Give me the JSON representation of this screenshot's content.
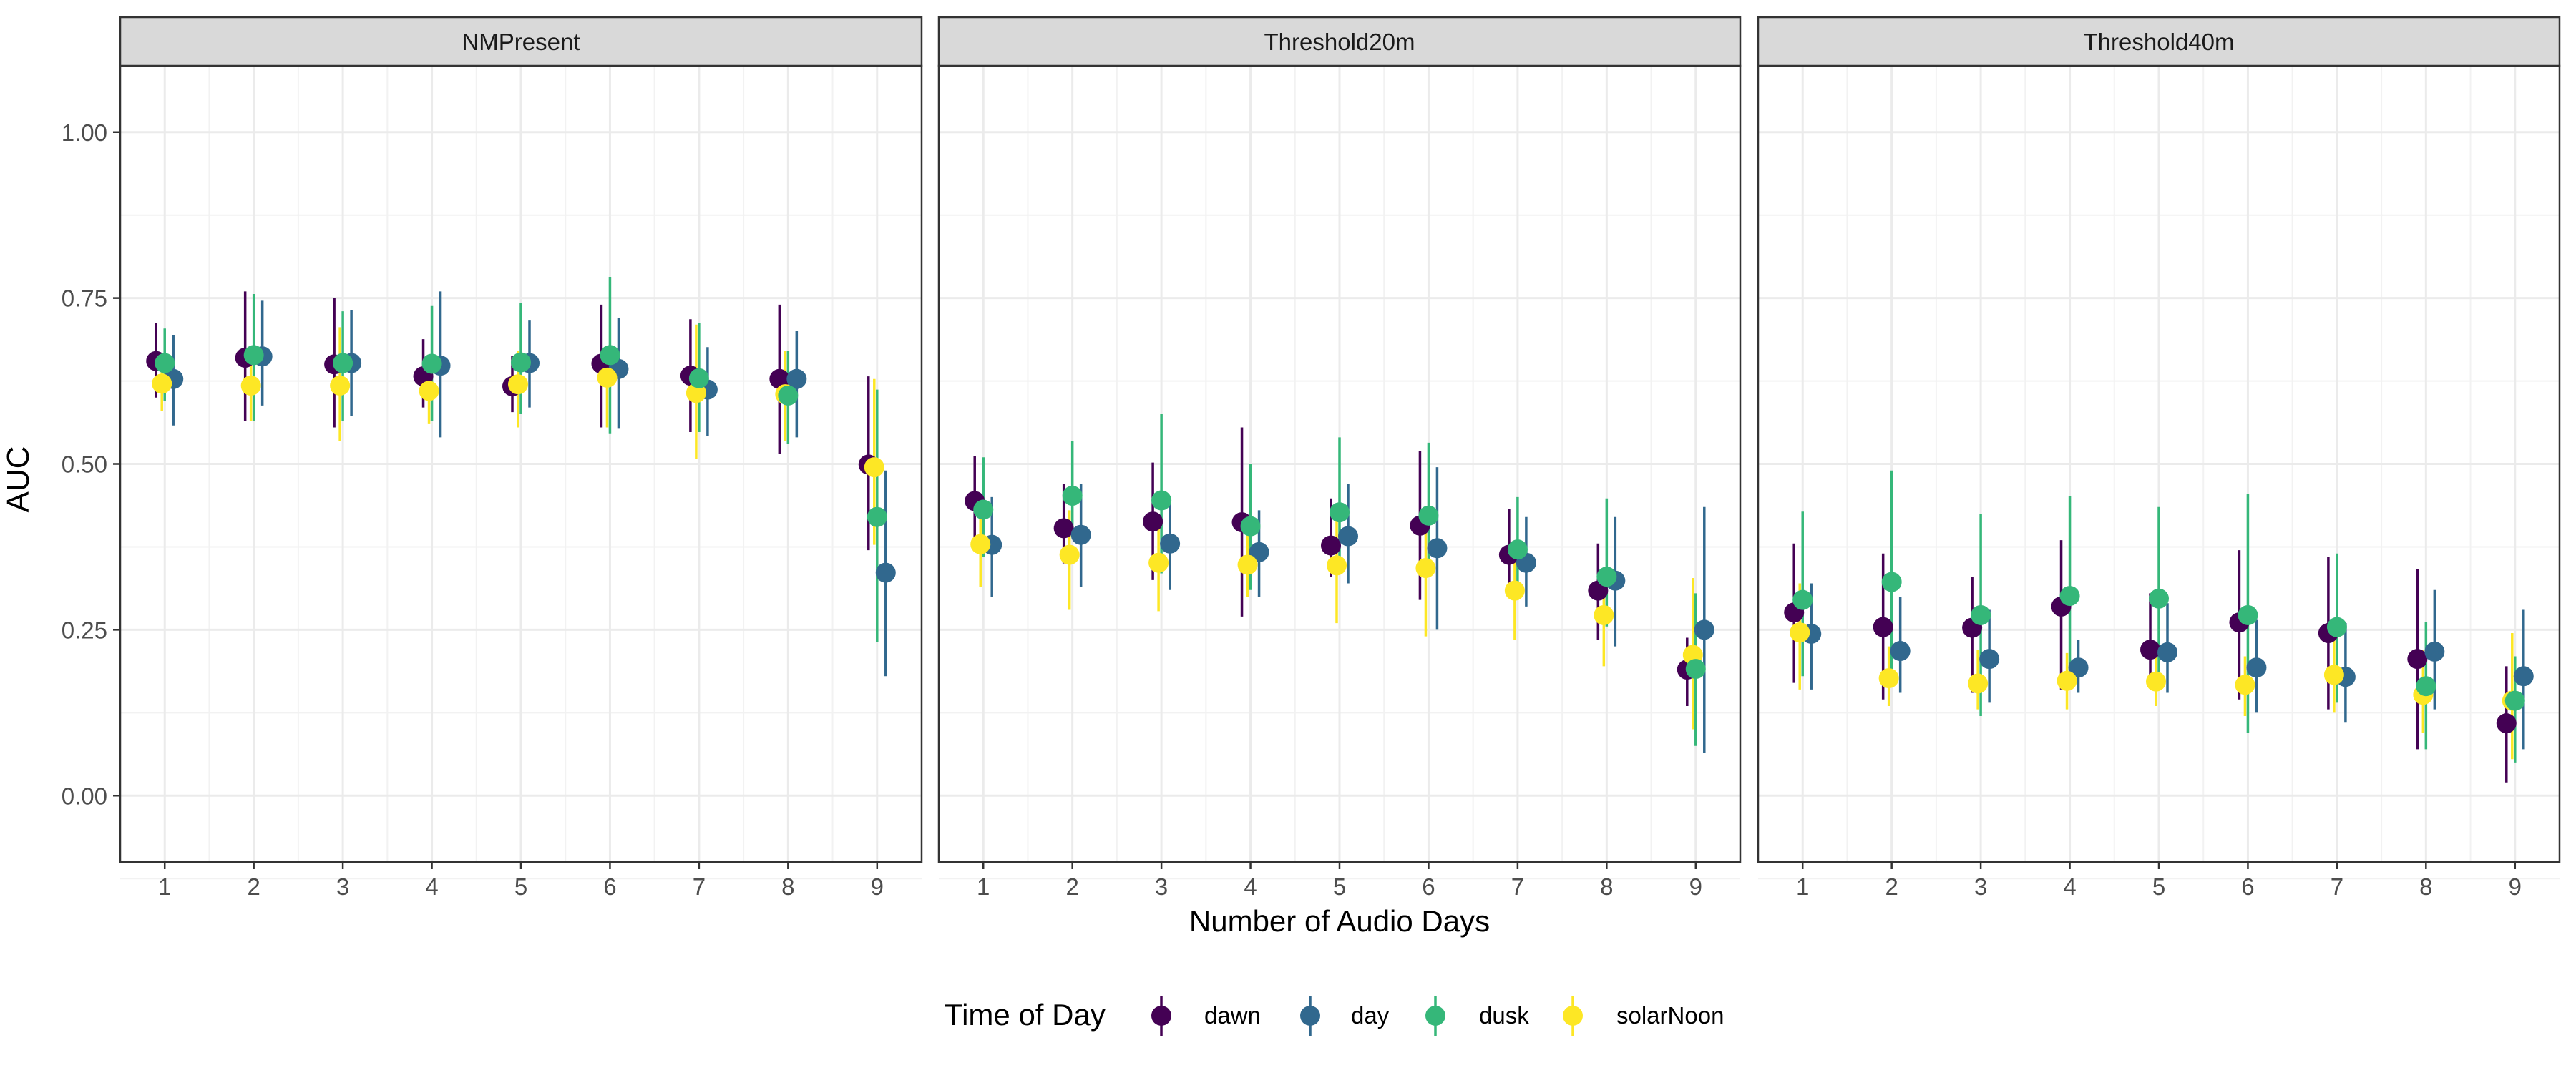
{
  "chart_data": {
    "type": "scatter",
    "title": "",
    "xlabel": "Number of Audio Days",
    "ylabel": "AUC",
    "ylim": [
      -0.1,
      1.1
    ],
    "xlim": [
      0.5,
      9.5
    ],
    "x": [
      1,
      2,
      3,
      4,
      5,
      6,
      7,
      8,
      9
    ],
    "y_ticks": [
      "0.00",
      "0.25",
      "0.50",
      "0.75",
      "1.00"
    ],
    "y_tick_values": [
      0,
      0.25,
      0.5,
      0.75,
      1.0
    ],
    "grid": true,
    "legend_title": "Time of Day",
    "legend_position": "bottom",
    "series_order": [
      "dawn",
      "day",
      "dusk",
      "solarNoon"
    ],
    "series_colors": {
      "dawn": "#440154",
      "day": "#31688e",
      "dusk": "#35b779",
      "solarNoon": "#fde725"
    },
    "facets": [
      {
        "label": "NMPresent",
        "series": [
          {
            "name": "dawn",
            "values": [
              0.655,
              0.66,
              0.65,
              0.632,
              0.617,
              0.651,
              0.633,
              0.628,
              0.499
            ],
            "lower": [
              0.6,
              0.565,
              0.555,
              0.585,
              0.578,
              0.555,
              0.548,
              0.515,
              0.37
            ],
            "upper": [
              0.712,
              0.76,
              0.75,
              0.688,
              0.663,
              0.74,
              0.718,
              0.74,
              0.632
            ]
          },
          {
            "name": "day",
            "values": [
              0.628,
              0.662,
              0.652,
              0.648,
              0.652,
              0.643,
              0.612,
              0.628,
              0.336
            ],
            "lower": [
              0.558,
              0.588,
              0.572,
              0.54,
              0.585,
              0.553,
              0.542,
              0.54,
              0.18
            ],
            "upper": [
              0.694,
              0.746,
              0.732,
              0.76,
              0.716,
              0.72,
              0.676,
              0.7,
              0.49
            ]
          },
          {
            "name": "dusk",
            "values": [
              0.652,
              0.664,
              0.652,
              0.651,
              0.653,
              0.664,
              0.629,
              0.603,
              0.42
            ],
            "lower": [
              0.595,
              0.565,
              0.565,
              0.565,
              0.575,
              0.545,
              0.548,
              0.53,
              0.232
            ],
            "upper": [
              0.704,
              0.756,
              0.73,
              0.738,
              0.742,
              0.782,
              0.712,
              0.67,
              0.612
            ]
          },
          {
            "name": "solarNoon",
            "values": [
              0.621,
              0.618,
              0.618,
              0.61,
              0.62,
              0.63,
              0.607,
              0.605,
              0.495
            ],
            "lower": [
              0.58,
              0.565,
              0.535,
              0.56,
              0.555,
              0.555,
              0.508,
              0.535,
              0.378
            ],
            "upper": [
              0.66,
              0.674,
              0.706,
              0.665,
              0.67,
              0.67,
              0.71,
              0.67,
              0.628
            ]
          }
        ]
      },
      {
        "label": "Threshold20m",
        "series": [
          {
            "name": "dawn",
            "values": [
              0.444,
              0.403,
              0.413,
              0.412,
              0.377,
              0.407,
              0.363,
              0.309,
              0.19
            ],
            "lower": [
              0.39,
              0.35,
              0.325,
              0.27,
              0.33,
              0.295,
              0.31,
              0.235,
              0.135
            ],
            "upper": [
              0.512,
              0.47,
              0.502,
              0.555,
              0.448,
              0.52,
              0.432,
              0.38,
              0.238
            ]
          },
          {
            "name": "day",
            "values": [
              0.378,
              0.393,
              0.38,
              0.367,
              0.391,
              0.373,
              0.351,
              0.324,
              0.25
            ],
            "lower": [
              0.3,
              0.315,
              0.31,
              0.3,
              0.32,
              0.25,
              0.285,
              0.225,
              0.065
            ],
            "upper": [
              0.45,
              0.47,
              0.44,
              0.43,
              0.47,
              0.495,
              0.42,
              0.42,
              0.435
            ]
          },
          {
            "name": "dusk",
            "values": [
              0.431,
              0.452,
              0.445,
              0.406,
              0.427,
              0.422,
              0.371,
              0.33,
              0.191
            ],
            "lower": [
              0.36,
              0.39,
              0.335,
              0.31,
              0.345,
              0.335,
              0.295,
              0.255,
              0.075
            ],
            "upper": [
              0.51,
              0.535,
              0.575,
              0.5,
              0.54,
              0.532,
              0.45,
              0.448,
              0.305
            ]
          },
          {
            "name": "solarNoon",
            "values": [
              0.379,
              0.363,
              0.351,
              0.348,
              0.347,
              0.343,
              0.309,
              0.272,
              0.212
            ],
            "lower": [
              0.315,
              0.28,
              0.278,
              0.3,
              0.26,
              0.24,
              0.235,
              0.195,
              0.1
            ],
            "upper": [
              0.43,
              0.43,
              0.425,
              0.4,
              0.42,
              0.41,
              0.38,
              0.34,
              0.328
            ]
          }
        ]
      },
      {
        "label": "Threshold40m",
        "series": [
          {
            "name": "dawn",
            "values": [
              0.276,
              0.254,
              0.253,
              0.285,
              0.22,
              0.261,
              0.245,
              0.206,
              0.109
            ],
            "lower": [
              0.17,
              0.145,
              0.155,
              0.16,
              0.165,
              0.145,
              0.13,
              0.07,
              0.02
            ],
            "upper": [
              0.38,
              0.365,
              0.33,
              0.385,
              0.305,
              0.37,
              0.36,
              0.342,
              0.195
            ]
          },
          {
            "name": "day",
            "values": [
              0.244,
              0.218,
              0.206,
              0.193,
              0.216,
              0.193,
              0.179,
              0.217,
              0.18
            ],
            "lower": [
              0.16,
              0.155,
              0.14,
              0.155,
              0.155,
              0.125,
              0.11,
              0.13,
              0.07
            ],
            "upper": [
              0.32,
              0.3,
              0.28,
              0.235,
              0.29,
              0.265,
              0.26,
              0.31,
              0.28
            ]
          },
          {
            "name": "dusk",
            "values": [
              0.295,
              0.322,
              0.272,
              0.301,
              0.297,
              0.272,
              0.254,
              0.165,
              0.143
            ],
            "lower": [
              0.18,
              0.19,
              0.12,
              0.17,
              0.17,
              0.095,
              0.14,
              0.07,
              0.05
            ],
            "upper": [
              0.428,
              0.49,
              0.425,
              0.452,
              0.435,
              0.455,
              0.365,
              0.262,
              0.21
            ]
          },
          {
            "name": "solarNoon",
            "values": [
              0.246,
              0.177,
              0.169,
              0.173,
              0.172,
              0.167,
              0.182,
              0.152,
              0.143
            ],
            "lower": [
              0.16,
              0.135,
              0.13,
              0.13,
              0.135,
              0.12,
              0.125,
              0.095,
              0.055
            ],
            "upper": [
              0.32,
              0.225,
              0.22,
              0.215,
              0.215,
              0.21,
              0.238,
              0.22,
              0.245
            ]
          }
        ]
      }
    ]
  }
}
